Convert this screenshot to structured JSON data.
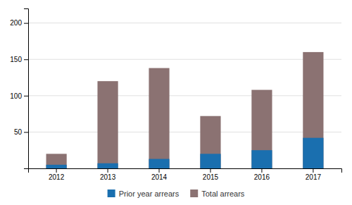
{
  "chart_data": {
    "type": "bar",
    "categories": [
      "2012",
      "2013",
      "2014",
      "2015",
      "2016",
      "2017"
    ],
    "series": [
      {
        "name": "Prior year arrears",
        "color": "#1a6faf",
        "values": [
          5,
          7,
          13,
          20,
          25,
          42
        ]
      },
      {
        "name": "Total arrears",
        "color": "#8b7272",
        "values": [
          20,
          120,
          138,
          72,
          108,
          160
        ]
      }
    ],
    "ylim": [
      0,
      220
    ],
    "yticks": [
      50,
      100,
      150,
      200
    ],
    "grid": true,
    "legend": "bottom"
  }
}
